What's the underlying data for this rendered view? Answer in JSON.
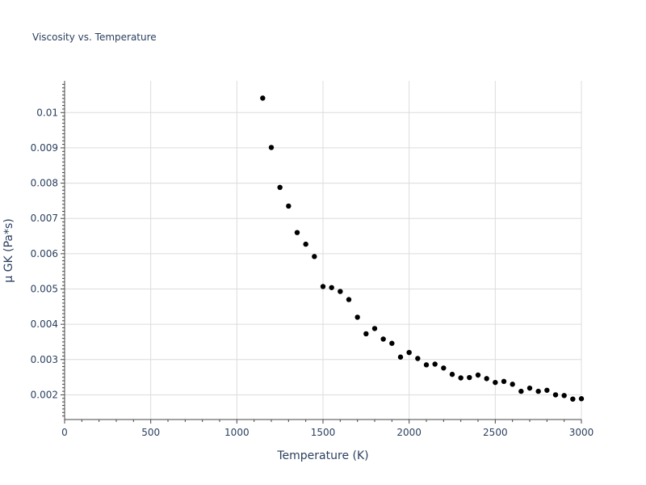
{
  "chart_data": {
    "type": "scatter",
    "title": "Viscosity vs. Temperature",
    "xlabel": "Temperature (K)",
    "ylabel": "μ GK (Pa*s)",
    "xlim": [
      0,
      3000
    ],
    "ylim": [
      0.0013,
      0.0109
    ],
    "x_ticks": [
      0,
      500,
      1000,
      1500,
      2000,
      2500,
      3000
    ],
    "x_tick_labels": [
      "0",
      "500",
      "1000",
      "1500",
      "2000",
      "2500",
      "3000"
    ],
    "y_ticks": [
      0.002,
      0.003,
      0.004,
      0.005,
      0.006,
      0.007,
      0.008,
      0.009,
      0.01
    ],
    "y_tick_labels": [
      "0.002",
      "0.003",
      "0.004",
      "0.005",
      "0.006",
      "0.007",
      "0.008",
      "0.009",
      "0.01"
    ],
    "grid": true,
    "marker_color": "#000000",
    "series": [
      {
        "name": "μ GK",
        "x": [
          1150,
          1200,
          1250,
          1300,
          1350,
          1400,
          1450,
          1500,
          1550,
          1600,
          1650,
          1700,
          1750,
          1800,
          1850,
          1900,
          1950,
          2000,
          2050,
          2100,
          2150,
          2200,
          2250,
          2300,
          2350,
          2400,
          2450,
          2500,
          2550,
          2600,
          2650,
          2700,
          2750,
          2800,
          2850,
          2900,
          2950,
          3000
        ],
        "y": [
          0.01041,
          0.009011,
          0.00788,
          0.00735,
          0.0066,
          0.00627,
          0.00592,
          0.00507,
          0.00504,
          0.00493,
          0.0047,
          0.0042,
          0.00373,
          0.00388,
          0.00358,
          0.00346,
          0.00307,
          0.0032,
          0.00303,
          0.00285,
          0.00287,
          0.00276,
          0.00258,
          0.00248,
          0.00249,
          0.00256,
          0.00246,
          0.00235,
          0.00238,
          0.0023,
          0.0021,
          0.00219,
          0.0021,
          0.00213,
          0.002,
          0.00198,
          0.00188,
          0.00189
        ]
      }
    ]
  }
}
